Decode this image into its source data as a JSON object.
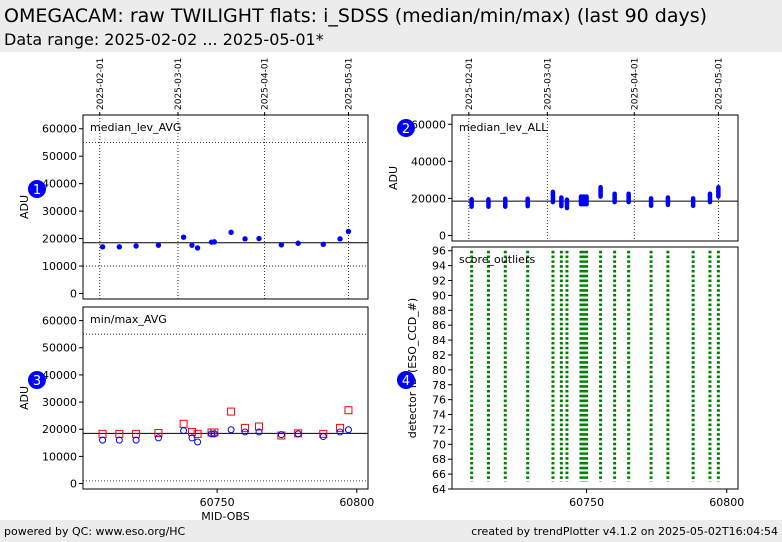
{
  "header": {
    "title": "OMEGACAM: raw TWILIGHT flats: i_SDSS (median/min/max) (last 90 days)",
    "subtitle": "Data range: 2025-02-02 ... 2025-05-01*"
  },
  "footer": {
    "left": "powered by QC: www.eso.org/HC",
    "right": "created by trendPlotter v4.1.2 on 2025-05-02T16:04:54"
  },
  "colors": {
    "median": "#0000ff",
    "minmax_max": "#ff0000",
    "minmax_min": "#0000ff",
    "outlier": "#008000",
    "marker": "#0000ff"
  },
  "chart_data": [
    {
      "id": 1,
      "type": "scatter",
      "label": "median_lev_AVG",
      "ylabel": "ADU",
      "ylim": [
        -2000,
        65000
      ],
      "yticks": [
        0,
        10000,
        20000,
        30000,
        40000,
        50000,
        60000
      ],
      "xlim": [
        60702,
        60804
      ],
      "date_ticks": [
        {
          "x": 60708,
          "label": "2025-02-01"
        },
        {
          "x": 60736,
          "label": "2025-03-01"
        },
        {
          "x": 60767,
          "label": "2025-04-01"
        },
        {
          "x": 60797,
          "label": "2025-05-01"
        }
      ],
      "ref_line": 18500,
      "hlines_dotted": [
        10000,
        55000
      ],
      "series": [
        {
          "values": [
            [
              60709,
              17000
            ],
            [
              60715,
              17000
            ],
            [
              60721,
              17300
            ],
            [
              60729,
              17600
            ],
            [
              60738,
              20500
            ],
            [
              60741,
              17600
            ],
            [
              60743,
              16600
            ],
            [
              60748,
              18700
            ],
            [
              60749,
              18800
            ],
            [
              60755,
              22300
            ],
            [
              60760,
              19900
            ],
            [
              60765,
              20000
            ],
            [
              60773,
              17700
            ],
            [
              60779,
              18300
            ],
            [
              60788,
              17900
            ],
            [
              60794,
              19900
            ],
            [
              60797,
              22600
            ]
          ]
        }
      ]
    },
    {
      "id": 2,
      "type": "scatter",
      "label": "median_lev_ALL",
      "ylabel": "ADU",
      "ylim": [
        -3000,
        65000
      ],
      "yticks": [
        0,
        20000,
        40000,
        60000
      ],
      "xlim": [
        60702,
        60804
      ],
      "date_ticks": [
        {
          "x": 60708,
          "label": "2025-02-01"
        },
        {
          "x": 60736,
          "label": "2025-03-01"
        },
        {
          "x": 60767,
          "label": "2025-04-01"
        },
        {
          "x": 60797,
          "label": "2025-05-01"
        }
      ],
      "ref_line": 18500,
      "series": [
        {
          "ranges": [
            [
              60709,
              15500,
              19500
            ],
            [
              60715,
              15500,
              19500
            ],
            [
              60721,
              15500,
              19800
            ],
            [
              60729,
              15800,
              19800
            ],
            [
              60738,
              18000,
              23500
            ],
            [
              60741,
              15800,
              20500
            ],
            [
              60743,
              14800,
              19300
            ],
            [
              60748,
              16800,
              21000
            ],
            [
              60749,
              16800,
              21000
            ],
            [
              60750,
              16800,
              21000
            ],
            [
              60755,
              21000,
              26000
            ],
            [
              60760,
              18000,
              22500
            ],
            [
              60765,
              18000,
              22500
            ],
            [
              60773,
              16000,
              20000
            ],
            [
              60779,
              16500,
              20500
            ],
            [
              60788,
              16000,
              20000
            ],
            [
              60794,
              18000,
              22500
            ],
            [
              60797,
              21000,
              26000
            ]
          ]
        }
      ]
    },
    {
      "id": 3,
      "type": "scatter",
      "label": "min/max_AVG",
      "ylabel": "ADU",
      "xlabel": "MJD-OBS",
      "ylim": [
        -2000,
        65000
      ],
      "yticks": [
        0,
        10000,
        20000,
        30000,
        40000,
        50000,
        60000
      ],
      "xlim": [
        60702,
        60804
      ],
      "xticks": [
        60750,
        60800
      ],
      "ref_line": 18500,
      "hlines_dotted": [
        1000,
        55000
      ],
      "series": [
        {
          "marker": "square",
          "values": [
            [
              60709,
              18300
            ],
            [
              60715,
              18300
            ],
            [
              60721,
              18300
            ],
            [
              60729,
              18600
            ],
            [
              60738,
              22000
            ],
            [
              60741,
              19000
            ],
            [
              60743,
              18300
            ],
            [
              60748,
              18800
            ],
            [
              60749,
              18800
            ],
            [
              60755,
              26500
            ],
            [
              60760,
              20500
            ],
            [
              60765,
              21000
            ],
            [
              60773,
              17700
            ],
            [
              60779,
              18500
            ],
            [
              60788,
              18300
            ],
            [
              60794,
              20500
            ],
            [
              60797,
              27000
            ]
          ]
        },
        {
          "marker": "circle",
          "values": [
            [
              60709,
              16000
            ],
            [
              60715,
              16000
            ],
            [
              60721,
              16000
            ],
            [
              60729,
              16800
            ],
            [
              60738,
              19500
            ],
            [
              60741,
              16800
            ],
            [
              60743,
              15300
            ],
            [
              60748,
              18300
            ],
            [
              60749,
              18300
            ],
            [
              60755,
              19800
            ],
            [
              60760,
              19000
            ],
            [
              60765,
              19000
            ],
            [
              60773,
              18000
            ],
            [
              60779,
              18300
            ],
            [
              60788,
              17300
            ],
            [
              60794,
              19000
            ],
            [
              60797,
              19800
            ]
          ]
        }
      ]
    },
    {
      "id": 4,
      "type": "scatter",
      "label": "score_outliers",
      "ylabel": "detector ID (ESO_CCD_#)",
      "ylim": [
        64,
        96.5
      ],
      "yticks": [
        64,
        66,
        68,
        70,
        72,
        74,
        76,
        78,
        80,
        82,
        84,
        86,
        88,
        90,
        92,
        94,
        96
      ],
      "xlim": [
        60702,
        60804
      ],
      "xticks": [
        60750,
        60800
      ],
      "series": [
        {
          "x": [
            60709,
            60715,
            60721,
            60729,
            60738,
            60741,
            60743,
            60748,
            60749,
            60750,
            60755,
            60760,
            60765,
            60773,
            60779,
            60788,
            60794,
            60797
          ],
          "detectors": [
            65,
            96
          ]
        }
      ]
    }
  ],
  "panel_markers": [
    "1",
    "2",
    "3",
    "4"
  ]
}
